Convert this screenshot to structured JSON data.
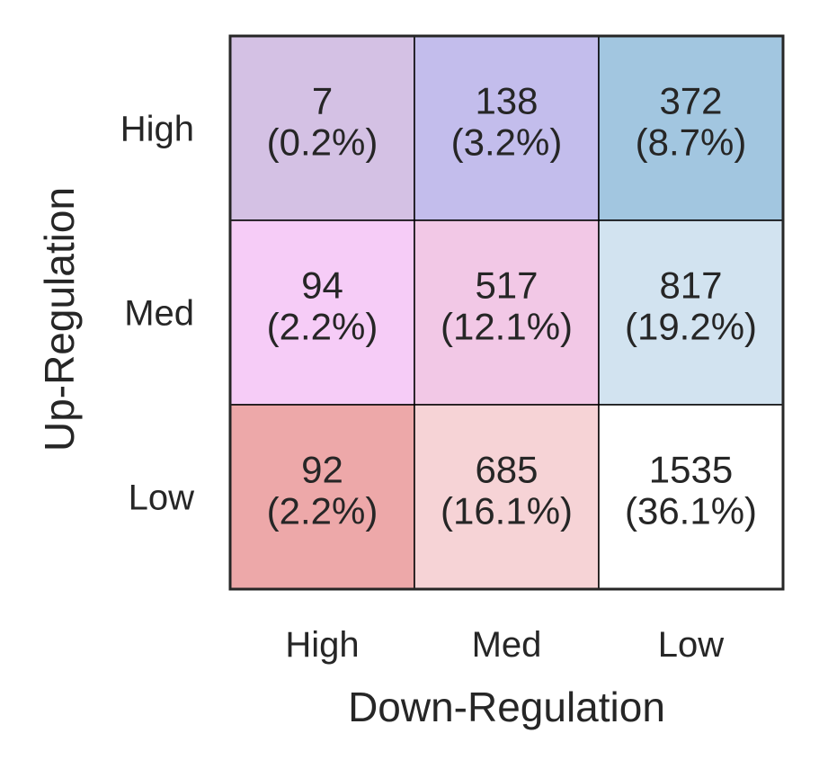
{
  "chart_data": {
    "type": "heatmap",
    "title": "",
    "xlabel": "Down-Regulation",
    "ylabel": "Up-Regulation",
    "x_categories": [
      "High",
      "Med",
      "Low"
    ],
    "y_categories": [
      "High",
      "Med",
      "Low"
    ],
    "cells": [
      [
        {
          "count": 7,
          "percent_label": "(0.2%)",
          "color": "#d4c1e4"
        },
        {
          "count": 138,
          "percent_label": "(3.2%)",
          "color": "#c3bdec"
        },
        {
          "count": 372,
          "percent_label": "(8.7%)",
          "color": "#a2c6e0"
        }
      ],
      [
        {
          "count": 94,
          "percent_label": "(2.2%)",
          "color": "#f6ccf7"
        },
        {
          "count": 517,
          "percent_label": "(12.1%)",
          "color": "#f2c8e6"
        },
        {
          "count": 817,
          "percent_label": "(19.2%)",
          "color": "#d2e3f0"
        }
      ],
      [
        {
          "count": 92,
          "percent_label": "(2.2%)",
          "color": "#eda8a9"
        },
        {
          "count": 685,
          "percent_label": "(16.1%)",
          "color": "#f6d3d6"
        },
        {
          "count": 1535,
          "percent_label": "(36.1%)",
          "color": "#ffffff"
        }
      ]
    ],
    "grid": false,
    "legend": "none"
  }
}
